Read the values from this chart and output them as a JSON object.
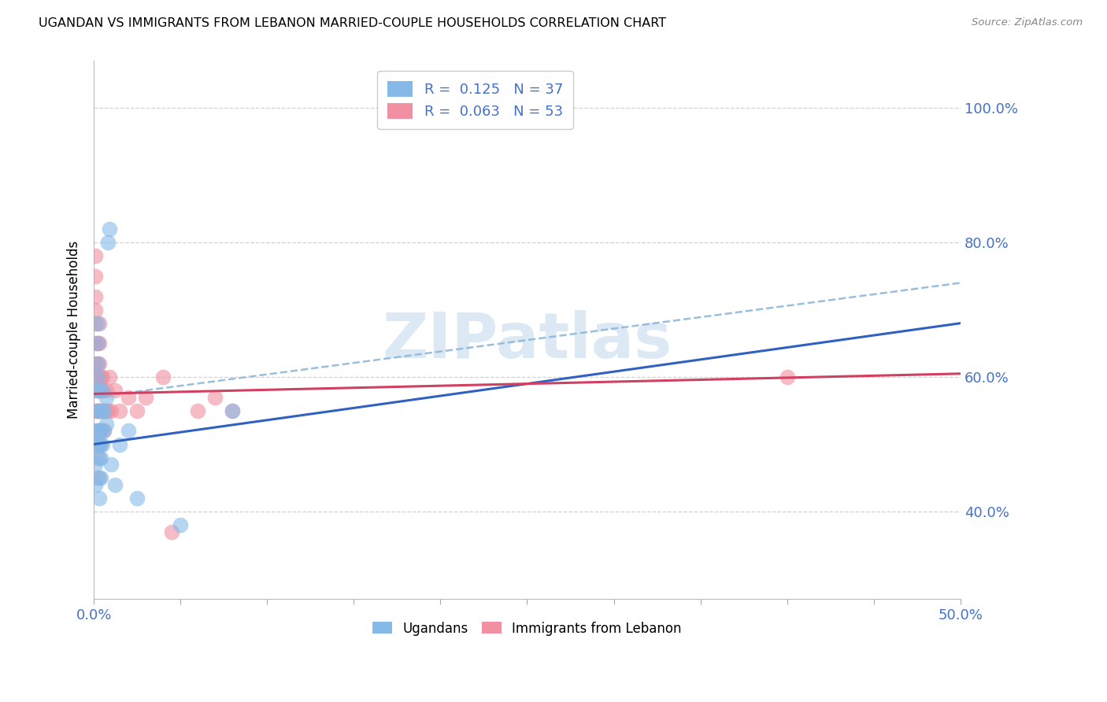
{
  "title": "UGANDAN VS IMMIGRANTS FROM LEBANON MARRIED-COUPLE HOUSEHOLDS CORRELATION CHART",
  "source": "Source: ZipAtlas.com",
  "ylabel": "Married-couple Households",
  "ytick_labels": [
    "100.0%",
    "80.0%",
    "60.0%",
    "40.0%"
  ],
  "ytick_values": [
    1.0,
    0.8,
    0.6,
    0.4
  ],
  "xlim": [
    0.0,
    0.5
  ],
  "ylim": [
    0.27,
    1.07
  ],
  "r1": 0.125,
  "n1": 37,
  "r2": 0.063,
  "n2": 53,
  "color_blue": "#85b9e8",
  "color_pink": "#f090a0",
  "color_line_blue": "#3060c0",
  "color_line_pink": "#d04060",
  "color_text_blue": "#4472c4",
  "color_dashed": "#90b8d8",
  "watermark_color": "#dce9f5",
  "background_color": "#ffffff",
  "grid_color": "#cccccc",
  "ugandan_x": [
    0.001,
    0.001,
    0.001,
    0.001,
    0.002,
    0.002,
    0.002,
    0.002,
    0.002,
    0.002,
    0.003,
    0.003,
    0.003,
    0.003,
    0.003,
    0.003,
    0.003,
    0.004,
    0.004,
    0.004,
    0.004,
    0.005,
    0.005,
    0.005,
    0.006,
    0.006,
    0.007,
    0.007,
    0.008,
    0.009,
    0.01,
    0.012,
    0.015,
    0.02,
    0.025,
    0.08,
    0.05
  ],
  "ugandan_y": [
    0.47,
    0.44,
    0.5,
    0.52,
    0.55,
    0.58,
    0.6,
    0.62,
    0.65,
    0.68,
    0.45,
    0.48,
    0.5,
    0.52,
    0.55,
    0.58,
    0.42,
    0.5,
    0.52,
    0.45,
    0.48,
    0.55,
    0.58,
    0.5,
    0.55,
    0.52,
    0.57,
    0.53,
    0.8,
    0.82,
    0.47,
    0.44,
    0.5,
    0.52,
    0.42,
    0.55,
    0.38
  ],
  "lebanon_x": [
    0.001,
    0.001,
    0.001,
    0.001,
    0.001,
    0.001,
    0.001,
    0.001,
    0.001,
    0.001,
    0.002,
    0.002,
    0.002,
    0.002,
    0.002,
    0.002,
    0.002,
    0.002,
    0.002,
    0.002,
    0.003,
    0.003,
    0.003,
    0.003,
    0.003,
    0.003,
    0.003,
    0.003,
    0.004,
    0.004,
    0.004,
    0.004,
    0.005,
    0.005,
    0.005,
    0.006,
    0.006,
    0.007,
    0.007,
    0.008,
    0.009,
    0.01,
    0.012,
    0.015,
    0.02,
    0.025,
    0.04,
    0.08,
    0.045,
    0.03,
    0.06,
    0.07,
    0.4
  ],
  "lebanon_y": [
    0.55,
    0.58,
    0.6,
    0.62,
    0.65,
    0.68,
    0.7,
    0.72,
    0.75,
    0.78,
    0.55,
    0.58,
    0.6,
    0.62,
    0.65,
    0.55,
    0.52,
    0.5,
    0.48,
    0.45,
    0.55,
    0.58,
    0.6,
    0.62,
    0.65,
    0.68,
    0.5,
    0.52,
    0.55,
    0.58,
    0.6,
    0.52,
    0.55,
    0.58,
    0.6,
    0.55,
    0.52,
    0.55,
    0.58,
    0.55,
    0.6,
    0.55,
    0.58,
    0.55,
    0.57,
    0.55,
    0.6,
    0.55,
    0.37,
    0.57,
    0.55,
    0.57,
    0.6
  ],
  "xtick_values": [
    0.0,
    0.05,
    0.1,
    0.15,
    0.2,
    0.25,
    0.3,
    0.35,
    0.4,
    0.45,
    0.5
  ],
  "xtick_labels_show": {
    "0.0": "0.0%",
    "0.5": "50.0%"
  }
}
